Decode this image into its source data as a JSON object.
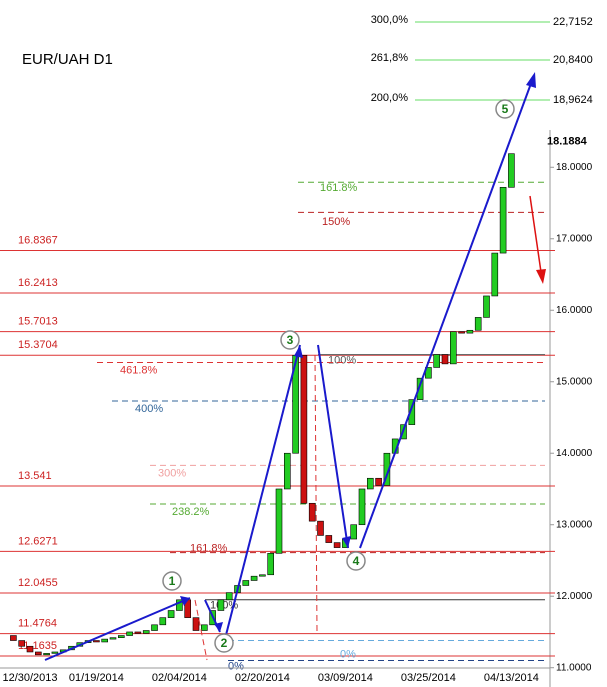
{
  "chart_data": {
    "type": "candlestick",
    "title": "EUR/UAH D1",
    "categories": [
      null,
      null,
      "12/30/2013",
      null,
      null,
      null,
      null,
      null,
      null,
      null,
      "01/19/2014",
      null,
      null,
      null,
      null,
      null,
      null,
      null,
      null,
      null,
      "02/04/2014",
      null,
      null,
      null,
      null,
      null,
      null,
      null,
      null,
      null,
      "02/20/2014",
      null,
      null,
      null,
      null,
      null,
      null,
      null,
      null,
      null,
      "03/09/2014",
      null,
      null,
      null,
      null,
      null,
      null,
      null,
      null,
      null,
      "03/25/2014",
      null,
      null,
      null,
      null,
      null,
      null,
      null,
      null,
      null,
      "04/13/2014"
    ],
    "open": [
      11.45,
      11.38,
      11.3,
      11.22,
      11.18,
      11.2,
      11.22,
      11.25,
      11.3,
      11.35,
      11.38,
      11.36,
      11.4,
      11.42,
      11.45,
      11.5,
      11.48,
      11.52,
      11.6,
      11.7,
      11.8,
      11.95,
      11.7,
      11.52,
      11.6,
      11.8,
      11.95,
      12.05,
      12.15,
      12.22,
      12.28,
      12.3,
      12.6,
      13.5,
      14.0,
      15.37,
      13.3,
      13.05,
      12.85,
      12.75,
      12.68,
      12.8,
      13.0,
      13.5,
      13.65,
      13.55,
      14.0,
      14.2,
      14.4,
      14.75,
      15.05,
      15.2,
      15.38,
      15.25,
      15.7,
      15.68,
      15.72,
      15.9,
      16.2,
      16.8,
      17.72
    ],
    "close": [
      11.38,
      11.3,
      11.22,
      11.18,
      11.2,
      11.22,
      11.25,
      11.3,
      11.35,
      11.38,
      11.36,
      11.4,
      11.42,
      11.45,
      11.5,
      11.48,
      11.52,
      11.6,
      11.7,
      11.8,
      11.95,
      11.7,
      11.52,
      11.6,
      11.8,
      11.95,
      12.05,
      12.15,
      12.22,
      12.28,
      12.3,
      12.6,
      13.5,
      14.0,
      15.37,
      13.3,
      13.05,
      12.85,
      12.75,
      12.68,
      12.8,
      13.0,
      13.5,
      13.65,
      13.55,
      14.0,
      14.2,
      14.4,
      14.75,
      15.05,
      15.2,
      15.38,
      15.25,
      15.7,
      15.68,
      15.72,
      15.9,
      16.2,
      16.8,
      17.72,
      18.19
    ],
    "up_color": "#22cc22",
    "down_color": "#cc1111",
    "ylim": [
      10.73,
      20.34
    ],
    "yticks": [
      {
        "value": 11,
        "label": "11.0000"
      },
      {
        "value": 12,
        "label": "12.0000"
      },
      {
        "value": 13,
        "label": "13.0000"
      },
      {
        "value": 14,
        "label": "14.0000"
      },
      {
        "value": 15,
        "label": "15.0000"
      },
      {
        "value": 16,
        "label": "16.0000"
      },
      {
        "value": 17,
        "label": "17.0000"
      },
      {
        "value": 18,
        "label": "18.0000"
      }
    ],
    "last_price": 18.1884,
    "levels": [
      16.8367,
      16.2413,
      15.7013,
      15.3704,
      13.541,
      12.6271,
      12.0455,
      11.4764,
      11.1635
    ],
    "level_color": "#dd3333",
    "fib_levels": [
      {
        "label": "161.8%",
        "value": 17.79,
        "color": "#55aa33"
      },
      {
        "label": "150%",
        "value": 17.37,
        "color": "#bb2222"
      },
      {
        "label": "100%",
        "value": 15.38,
        "color": "#555555"
      },
      {
        "label": "461.8%",
        "value": 15.27,
        "color": "#dd3333"
      },
      {
        "label": "400%",
        "value": 14.73,
        "color": "#336699"
      },
      {
        "label": "300%",
        "value": 13.83,
        "color": "#f0a0a0"
      },
      {
        "label": "238.2%",
        "value": 13.29,
        "color": "#55aa33"
      },
      {
        "label": "161.8%",
        "value": 12.61,
        "color": "#bb2222"
      },
      {
        "label": "100%",
        "value": 11.95,
        "color": "#333333"
      },
      {
        "label": "0%",
        "value": 11.38,
        "color": "#66aadd"
      },
      {
        "label": "0%",
        "value": 11.1,
        "color": "#224488"
      }
    ],
    "targets": [
      {
        "pct": "300,0%",
        "price": "22,7152"
      },
      {
        "pct": "261,8%",
        "price": "20,8400"
      },
      {
        "pct": "200,0%",
        "price": "18,9624"
      }
    ],
    "target_color": "#66dd66",
    "waves": [
      "1",
      "2",
      "3",
      "4",
      "5"
    ]
  }
}
